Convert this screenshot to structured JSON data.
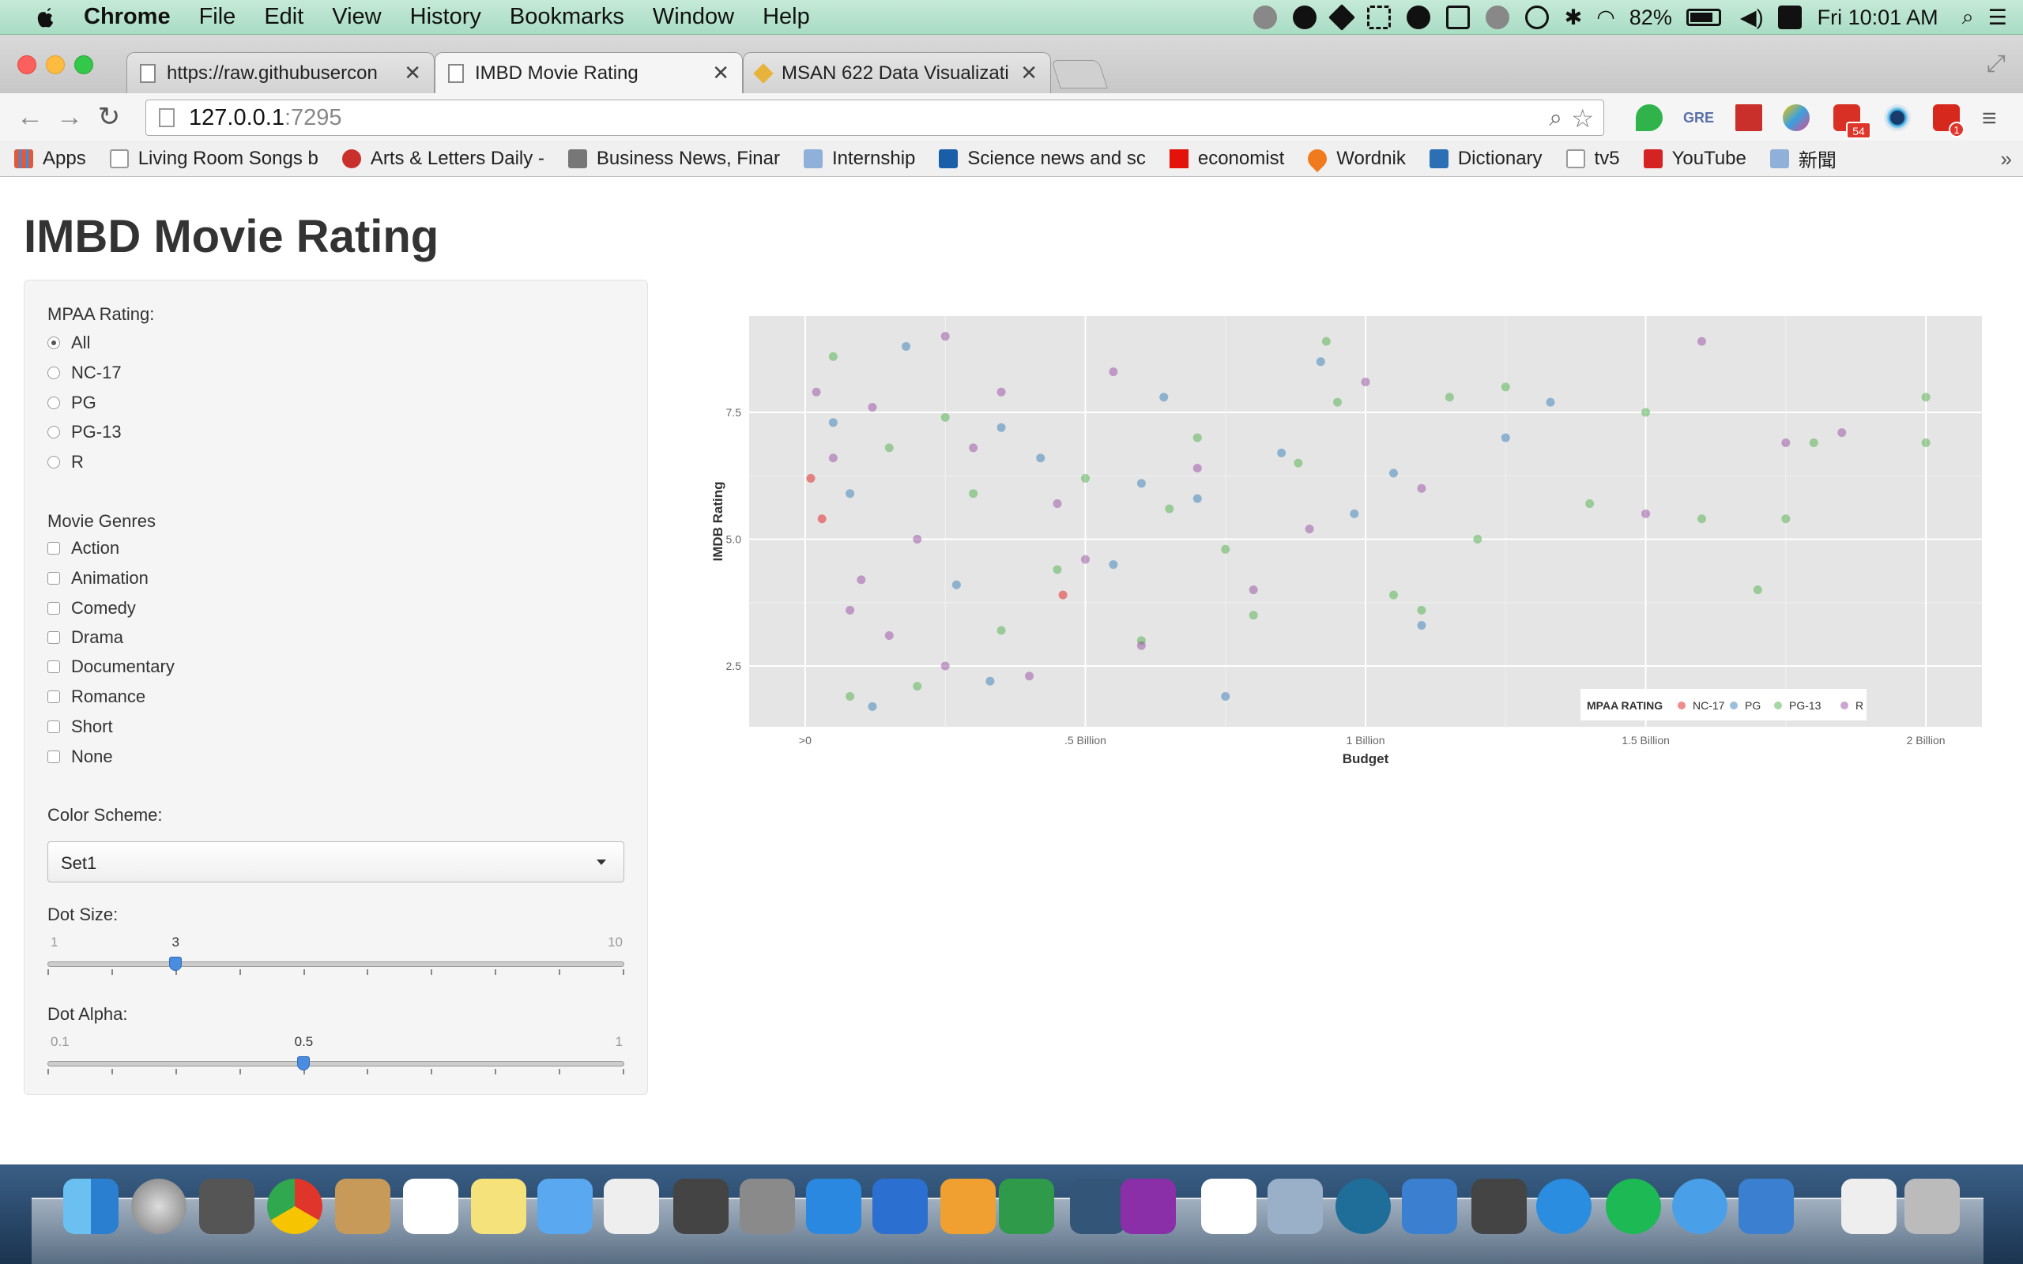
{
  "menubar": {
    "app": "Chrome",
    "items": [
      "File",
      "Edit",
      "View",
      "History",
      "Bookmarks",
      "Window",
      "Help"
    ],
    "battery": "82%",
    "clock": "Fri 10:01 AM"
  },
  "tabs": [
    {
      "title": "https://raw.githubusercon",
      "active": false
    },
    {
      "title": "IMBD Movie Rating",
      "active": true
    },
    {
      "title": "MSAN 622 Data Visualizati",
      "active": false
    }
  ],
  "address": {
    "host": "127.0.0.1",
    "port": ":7295"
  },
  "extensions": {
    "badge_mail": "54",
    "badge_td": "1",
    "gre": "GRE"
  },
  "bookmarks": [
    {
      "label": "Apps",
      "color": "#e0593a"
    },
    {
      "label": "Living Room Songs b",
      "color": "#ffffff"
    },
    {
      "label": "Arts & Letters Daily -",
      "color": "#c9302c"
    },
    {
      "label": "Business News, Finar",
      "color": "#777777"
    },
    {
      "label": "Internship",
      "color": "#8fb0d8"
    },
    {
      "label": "Science news and sc",
      "color": "#1a5ea8"
    },
    {
      "label": "economist",
      "color": "#e3120b"
    },
    {
      "label": "Wordnik",
      "color": "#f07b1f"
    },
    {
      "label": "Dictionary",
      "color": "#2c6fb5"
    },
    {
      "label": "tv5",
      "color": "#ffffff"
    },
    {
      "label": "YouTube",
      "color": "#d52323"
    },
    {
      "label": "新聞",
      "color": "#8fb0d8"
    }
  ],
  "page": {
    "title": "IMBD Movie Rating",
    "mpaa_label": "MPAA Rating:",
    "mpaa_options": [
      "All",
      "NC-17",
      "PG",
      "PG-13",
      "R"
    ],
    "mpaa_selected": "All",
    "genres_label": "Movie Genres",
    "genres": [
      "Action",
      "Animation",
      "Comedy",
      "Drama",
      "Documentary",
      "Romance",
      "Short",
      "None"
    ],
    "color_label": "Color Scheme:",
    "color_value": "Set1",
    "dot_size": {
      "label": "Dot Size:",
      "min": "1",
      "max": "10",
      "value": "3",
      "min_n": 1,
      "max_n": 10,
      "value_n": 3
    },
    "dot_alpha": {
      "label": "Dot Alpha:",
      "min": "0.1",
      "max": "1",
      "value": "0.5",
      "min_n": 0.1,
      "max_n": 1,
      "value_n": 0.5
    }
  },
  "chart_data": {
    "type": "scatter",
    "xlabel": "Budget",
    "ylabel": "IMDB Rating",
    "x_ticks": [
      ">0",
      ".5 Billion",
      "1 Billion",
      "1.5 Billion",
      "2 Billion"
    ],
    "x_tick_values": [
      0,
      0.5,
      1.0,
      1.5,
      2.0
    ],
    "y_ticks": [
      "2.5",
      "5.0",
      "7.5"
    ],
    "y_tick_values": [
      2.5,
      5.0,
      7.5
    ],
    "xlim": [
      -0.1,
      2.1
    ],
    "ylim": [
      1.3,
      9.4
    ],
    "grid": true,
    "legend": {
      "title": "MPAA RATING",
      "placement": "bottom-right",
      "entries": [
        {
          "name": "NC-17",
          "color": "#e41a1c"
        },
        {
          "name": "PG",
          "color": "#377eb8"
        },
        {
          "name": "PG-13",
          "color": "#4daf4a"
        },
        {
          "name": "R",
          "color": "#984ea3"
        }
      ]
    },
    "series": [
      {
        "name": "NC-17",
        "color": "#e41a1c",
        "points": [
          [
            0.46,
            3.9
          ],
          [
            0.01,
            6.2
          ],
          [
            0.03,
            5.4
          ]
        ]
      },
      {
        "name": "PG",
        "color": "#377eb8",
        "points": [
          [
            0.18,
            8.8
          ],
          [
            0.35,
            7.2
          ],
          [
            0.6,
            6.1
          ],
          [
            0.85,
            6.7
          ],
          [
            0.92,
            8.5
          ],
          [
            1.1,
            3.3
          ],
          [
            1.25,
            7.0
          ],
          [
            1.33,
            7.7
          ],
          [
            0.75,
            1.9
          ],
          [
            0.33,
            2.2
          ],
          [
            0.12,
            1.7
          ],
          [
            0.55,
            4.5
          ],
          [
            0.42,
            6.6
          ],
          [
            0.7,
            5.8
          ],
          [
            1.05,
            6.3
          ],
          [
            0.98,
            5.5
          ],
          [
            0.27,
            4.1
          ],
          [
            0.08,
            5.9
          ],
          [
            0.05,
            7.3
          ],
          [
            0.64,
            7.8
          ]
        ]
      },
      {
        "name": "PG-13",
        "color": "#4daf4a",
        "points": [
          [
            0.93,
            8.9
          ],
          [
            2.0,
            7.8
          ],
          [
            2.0,
            6.9
          ],
          [
            1.6,
            5.4
          ],
          [
            1.75,
            5.4
          ],
          [
            1.8,
            6.9
          ],
          [
            1.7,
            4.0
          ],
          [
            1.5,
            7.5
          ],
          [
            1.4,
            5.7
          ],
          [
            1.25,
            8.0
          ],
          [
            1.15,
            7.8
          ],
          [
            1.05,
            3.9
          ],
          [
            1.1,
            3.6
          ],
          [
            0.8,
            3.5
          ],
          [
            0.6,
            3.0
          ],
          [
            0.35,
            3.2
          ],
          [
            0.2,
            2.1
          ],
          [
            0.08,
            1.9
          ],
          [
            0.95,
            7.7
          ],
          [
            0.88,
            6.5
          ],
          [
            0.75,
            4.8
          ],
          [
            0.5,
            6.2
          ],
          [
            0.3,
            5.9
          ],
          [
            0.15,
            6.8
          ],
          [
            0.05,
            8.6
          ],
          [
            1.2,
            5.0
          ],
          [
            0.7,
            7.0
          ],
          [
            0.45,
            4.4
          ],
          [
            0.25,
            7.4
          ],
          [
            0.65,
            5.6
          ]
        ]
      },
      {
        "name": "R",
        "color": "#984ea3",
        "points": [
          [
            0.25,
            9.0
          ],
          [
            0.55,
            8.3
          ],
          [
            1.0,
            8.1
          ],
          [
            1.6,
            8.9
          ],
          [
            1.75,
            6.9
          ],
          [
            1.85,
            7.1
          ],
          [
            1.5,
            5.5
          ],
          [
            0.8,
            4.0
          ],
          [
            0.6,
            2.9
          ],
          [
            0.4,
            2.3
          ],
          [
            0.25,
            2.5
          ],
          [
            0.15,
            3.1
          ],
          [
            0.1,
            4.2
          ],
          [
            0.05,
            6.6
          ],
          [
            0.02,
            7.9
          ],
          [
            0.3,
            6.8
          ],
          [
            0.45,
            5.7
          ],
          [
            0.7,
            6.4
          ],
          [
            0.9,
            5.2
          ],
          [
            1.1,
            6.0
          ],
          [
            0.2,
            5.0
          ],
          [
            0.12,
            7.6
          ],
          [
            0.35,
            7.9
          ],
          [
            0.5,
            4.6
          ],
          [
            0.08,
            3.6
          ]
        ]
      }
    ]
  }
}
